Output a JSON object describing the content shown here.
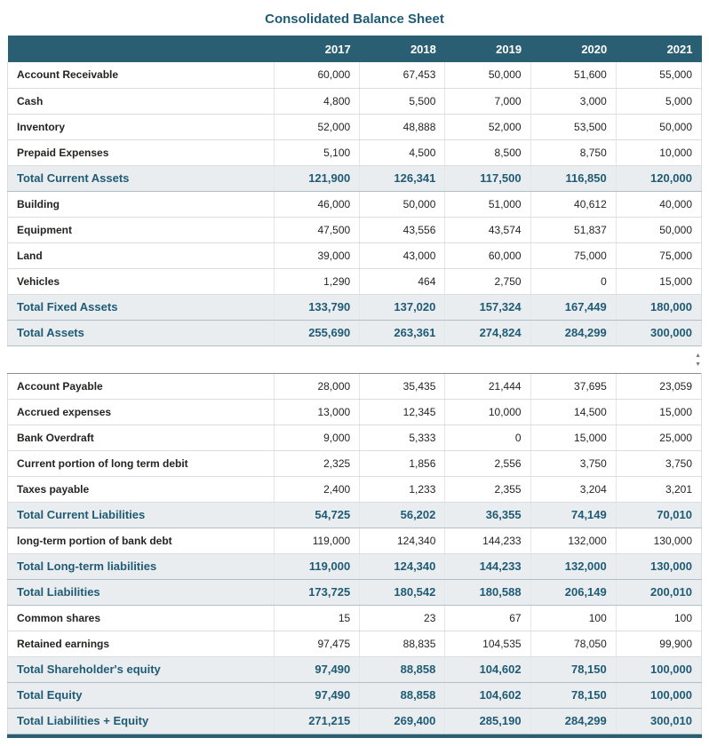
{
  "title": "Consolidated Balance Sheet",
  "scrollbar": {
    "up_icon": "▲",
    "down_icon": "▼"
  },
  "colors": {
    "header_bg": "#2a5e73",
    "title_text": "#1f5b75",
    "total_text": "#1f5b75",
    "total_bg": "#e9edef",
    "accent": "#2a5e73"
  },
  "chart_data": {
    "type": "table",
    "title": "Consolidated Balance Sheet",
    "columns": [
      "2017",
      "2018",
      "2019",
      "2020",
      "2021"
    ],
    "sections": [
      {
        "name": "assets",
        "rows": [
          {
            "label": "Account Receivable",
            "row_type": "data",
            "values": [
              "60,000",
              "67,453",
              "50,000",
              "51,600",
              "55,000"
            ]
          },
          {
            "label": "Cash",
            "row_type": "data",
            "values": [
              "4,800",
              "5,500",
              "7,000",
              "3,000",
              "5,000"
            ]
          },
          {
            "label": "Inventory",
            "row_type": "data",
            "values": [
              "52,000",
              "48,888",
              "52,000",
              "53,500",
              "50,000"
            ]
          },
          {
            "label": "Prepaid Expenses",
            "row_type": "data",
            "values": [
              "5,100",
              "4,500",
              "8,500",
              "8,750",
              "10,000"
            ]
          },
          {
            "label": "Total Current Assets",
            "row_type": "total",
            "values": [
              "121,900",
              "126,341",
              "117,500",
              "116,850",
              "120,000"
            ]
          },
          {
            "label": "Building",
            "row_type": "data",
            "values": [
              "46,000",
              "50,000",
              "51,000",
              "40,612",
              "40,000"
            ]
          },
          {
            "label": "Equipment",
            "row_type": "data",
            "values": [
              "47,500",
              "43,556",
              "43,574",
              "51,837",
              "50,000"
            ]
          },
          {
            "label": "Land",
            "row_type": "data",
            "values": [
              "39,000",
              "43,000",
              "60,000",
              "75,000",
              "75,000"
            ]
          },
          {
            "label": "Vehicles",
            "row_type": "data",
            "values": [
              "1,290",
              "464",
              "2,750",
              "0",
              "15,000"
            ]
          },
          {
            "label": "Total Fixed Assets",
            "row_type": "total",
            "values": [
              "133,790",
              "137,020",
              "157,324",
              "167,449",
              "180,000"
            ]
          },
          {
            "label": "Total Assets",
            "row_type": "total",
            "values": [
              "255,690",
              "263,361",
              "274,824",
              "284,299",
              "300,000"
            ]
          }
        ]
      },
      {
        "name": "liabilities_equity",
        "rows": [
          {
            "label": "Account Payable",
            "row_type": "data",
            "values": [
              "28,000",
              "35,435",
              "21,444",
              "37,695",
              "23,059"
            ]
          },
          {
            "label": "Accrued expenses",
            "row_type": "data",
            "values": [
              "13,000",
              "12,345",
              "10,000",
              "14,500",
              "15,000"
            ]
          },
          {
            "label": "Bank Overdraft",
            "row_type": "data",
            "values": [
              "9,000",
              "5,333",
              "0",
              "15,000",
              "25,000"
            ]
          },
          {
            "label": "Current portion of long term debit",
            "row_type": "data",
            "values": [
              "2,325",
              "1,856",
              "2,556",
              "3,750",
              "3,750"
            ]
          },
          {
            "label": "Taxes payable",
            "row_type": "data",
            "values": [
              "2,400",
              "1,233",
              "2,355",
              "3,204",
              "3,201"
            ]
          },
          {
            "label": "Total Current Liabilities",
            "row_type": "total",
            "values": [
              "54,725",
              "56,202",
              "36,355",
              "74,149",
              "70,010"
            ]
          },
          {
            "label": "long-term portion of bank debt",
            "row_type": "data",
            "values": [
              "119,000",
              "124,340",
              "144,233",
              "132,000",
              "130,000"
            ]
          },
          {
            "label": "Total Long-term liabilities",
            "row_type": "total",
            "values": [
              "119,000",
              "124,340",
              "144,233",
              "132,000",
              "130,000"
            ]
          },
          {
            "label": "Total Liabilities",
            "row_type": "total",
            "values": [
              "173,725",
              "180,542",
              "180,588",
              "206,149",
              "200,010"
            ]
          },
          {
            "label": "Common shares",
            "row_type": "data",
            "values": [
              "15",
              "23",
              "67",
              "100",
              "100"
            ]
          },
          {
            "label": "Retained earnings",
            "row_type": "data",
            "values": [
              "97,475",
              "88,835",
              "104,535",
              "78,050",
              "99,900"
            ]
          },
          {
            "label": "Total Shareholder's equity",
            "row_type": "total",
            "values": [
              "97,490",
              "88,858",
              "104,602",
              "78,150",
              "100,000"
            ]
          },
          {
            "label": "Total Equity",
            "row_type": "total",
            "values": [
              "97,490",
              "88,858",
              "104,602",
              "78,150",
              "100,000"
            ]
          },
          {
            "label": "Total Liabilities + Equity",
            "row_type": "total",
            "values": [
              "271,215",
              "269,400",
              "285,190",
              "284,299",
              "300,010"
            ]
          }
        ]
      }
    ]
  }
}
